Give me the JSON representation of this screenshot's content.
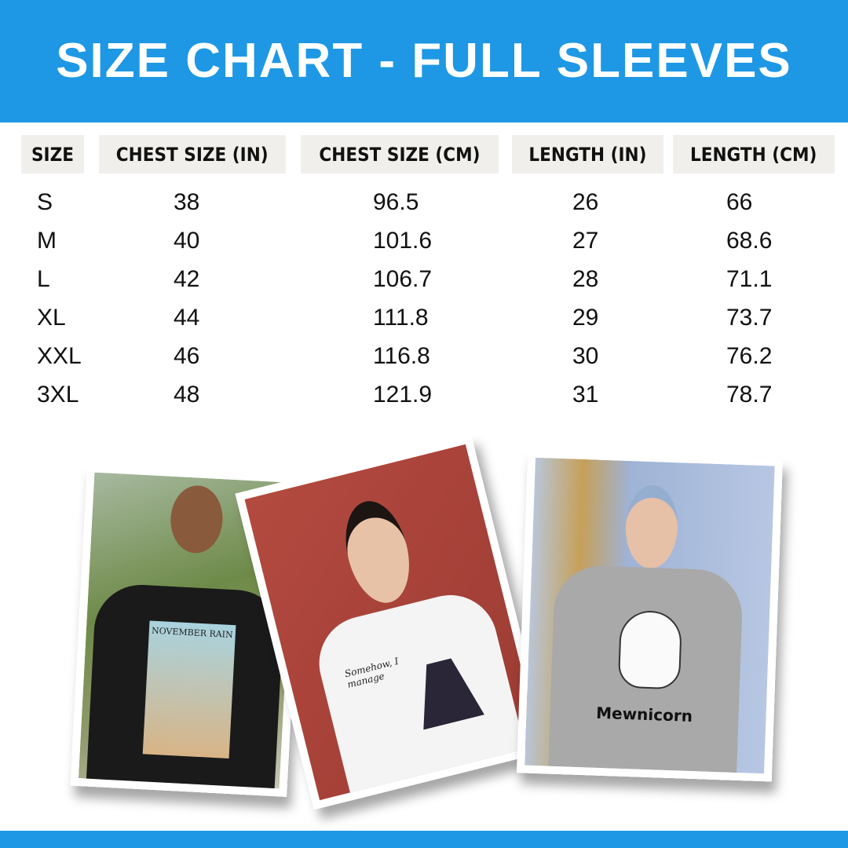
{
  "title": "SIZE CHART - FULL SLEEVES",
  "table": {
    "headers": [
      "SIZE",
      "CHEST SIZE (IN)",
      "CHEST SIZE (CM)",
      "LENGTH (IN)",
      "LENGTH (CM)"
    ],
    "rows": [
      [
        "S",
        "38",
        "96.5",
        "26",
        "66"
      ],
      [
        "M",
        "40",
        "101.6",
        "27",
        "68.6"
      ],
      [
        "L",
        "42",
        "106.7",
        "28",
        "71.1"
      ],
      [
        "XL",
        "44",
        "111.8",
        "29",
        "73.7"
      ],
      [
        "XXL",
        "46",
        "116.8",
        "30",
        "76.2"
      ],
      [
        "3XL",
        "48",
        "121.9",
        "31",
        "78.7"
      ]
    ]
  },
  "photos": [
    {
      "shirt_print": "NOVEMBER RAIN",
      "shirt_color": "#1a1a1a"
    },
    {
      "shirt_print": "Somehow, I manage",
      "shirt_color": "#f4f4f4"
    },
    {
      "shirt_print": "Mewnicorn",
      "shirt_color": "#a9a9a9"
    }
  ],
  "colors": {
    "brand_blue": "#1e98e4",
    "header_cell_bg": "#f0efeb"
  }
}
